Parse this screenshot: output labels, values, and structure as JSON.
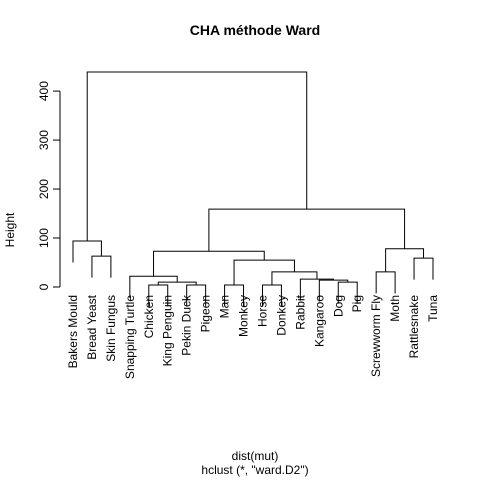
{
  "chart_data": {
    "type": "dendrogram",
    "title": "CHA méthode Ward",
    "ylabel": "Height",
    "xlabel": "dist(mut)",
    "subtitle": "hclust (*, \"ward.D2\")",
    "leaves": [
      "Bakers Mould",
      "Bread Yeast",
      "Skin Fungus",
      "Snapping Turtle",
      "Chicken",
      "King Penguin",
      "Pekin Duck",
      "Pigeon",
      "Man",
      "Monkey",
      "Horse",
      "Donkey",
      "Rabbit",
      "Kangaroo",
      "Dog",
      "Pig",
      "Screwworm Fly",
      "Moth",
      "Rattlesnake",
      "Tuna"
    ],
    "merges": [
      {
        "children": [
          1,
          2
        ],
        "height": 63
      },
      {
        "children": [
          0,
          20
        ],
        "height": 94
      },
      {
        "children": [
          4,
          5
        ],
        "height": 4
      },
      {
        "children": [
          6,
          7
        ],
        "height": 4
      },
      {
        "children": [
          22,
          23
        ],
        "height": 10
      },
      {
        "children": [
          3,
          24
        ],
        "height": 22
      },
      {
        "children": [
          8,
          9
        ],
        "height": 4
      },
      {
        "children": [
          10,
          11
        ],
        "height": 4
      },
      {
        "children": [
          14,
          15
        ],
        "height": 10
      },
      {
        "children": [
          13,
          28
        ],
        "height": 14
      },
      {
        "children": [
          12,
          29
        ],
        "height": 16
      },
      {
        "children": [
          27,
          30
        ],
        "height": 31
      },
      {
        "children": [
          26,
          31
        ],
        "height": 55
      },
      {
        "children": [
          25,
          32
        ],
        "height": 73
      },
      {
        "children": [
          16,
          17
        ],
        "height": 31
      },
      {
        "children": [
          18,
          19
        ],
        "height": 59
      },
      {
        "children": [
          34,
          35
        ],
        "height": 78
      },
      {
        "children": [
          33,
          36
        ],
        "height": 159
      },
      {
        "children": [
          21,
          37
        ],
        "height": 439
      }
    ],
    "ylim": [
      0,
      439
    ],
    "yticks": [
      0,
      100,
      200,
      300,
      400
    ],
    "color": "#000000"
  }
}
